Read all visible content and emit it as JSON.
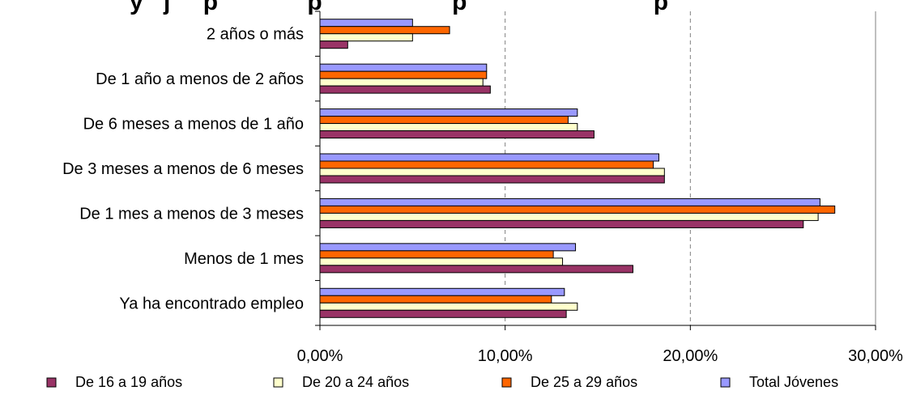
{
  "chart_data": {
    "type": "bar",
    "orientation": "horizontal",
    "title": "",
    "xlabel": "",
    "ylabel": "",
    "categories": [
      "2 años o más",
      "De 1 año a menos de 2 años",
      "De 6 meses a menos de 1 año",
      "De 3 meses a menos de 6 meses",
      "De 1 mes a menos de 3 meses",
      "Menos de 1 mes",
      "Ya ha encontrado empleo"
    ],
    "series": [
      {
        "name": "Total Jóvenes",
        "color": "#9999ff",
        "values": [
          5.0,
          9.0,
          13.9,
          18.3,
          27.0,
          13.8,
          13.2
        ]
      },
      {
        "name": "De 25 a 29 años",
        "color": "#ff6600",
        "values": [
          7.0,
          9.0,
          13.4,
          18.0,
          27.8,
          12.6,
          12.5
        ]
      },
      {
        "name": "De 20 a 24 años",
        "color": "#ffffcc",
        "values": [
          5.0,
          8.8,
          13.9,
          18.6,
          26.9,
          13.1,
          13.9
        ]
      },
      {
        "name": "De 16 a 19 años",
        "color": "#993366",
        "values": [
          1.5,
          9.2,
          14.8,
          18.6,
          26.1,
          16.9,
          13.3
        ]
      }
    ],
    "legend_order": [
      "De 16 a 19 años",
      "De 20 a 24 años",
      "De 25 a 29 años",
      "Total Jóvenes"
    ],
    "xlim": [
      0,
      30
    ],
    "xticks": [
      "0,00%",
      "10,00%",
      "20,00%",
      "30,00%"
    ],
    "xtick_values": [
      0,
      10,
      20,
      30
    ],
    "grid": "vertical-dashed",
    "legend_position": "bottom"
  }
}
